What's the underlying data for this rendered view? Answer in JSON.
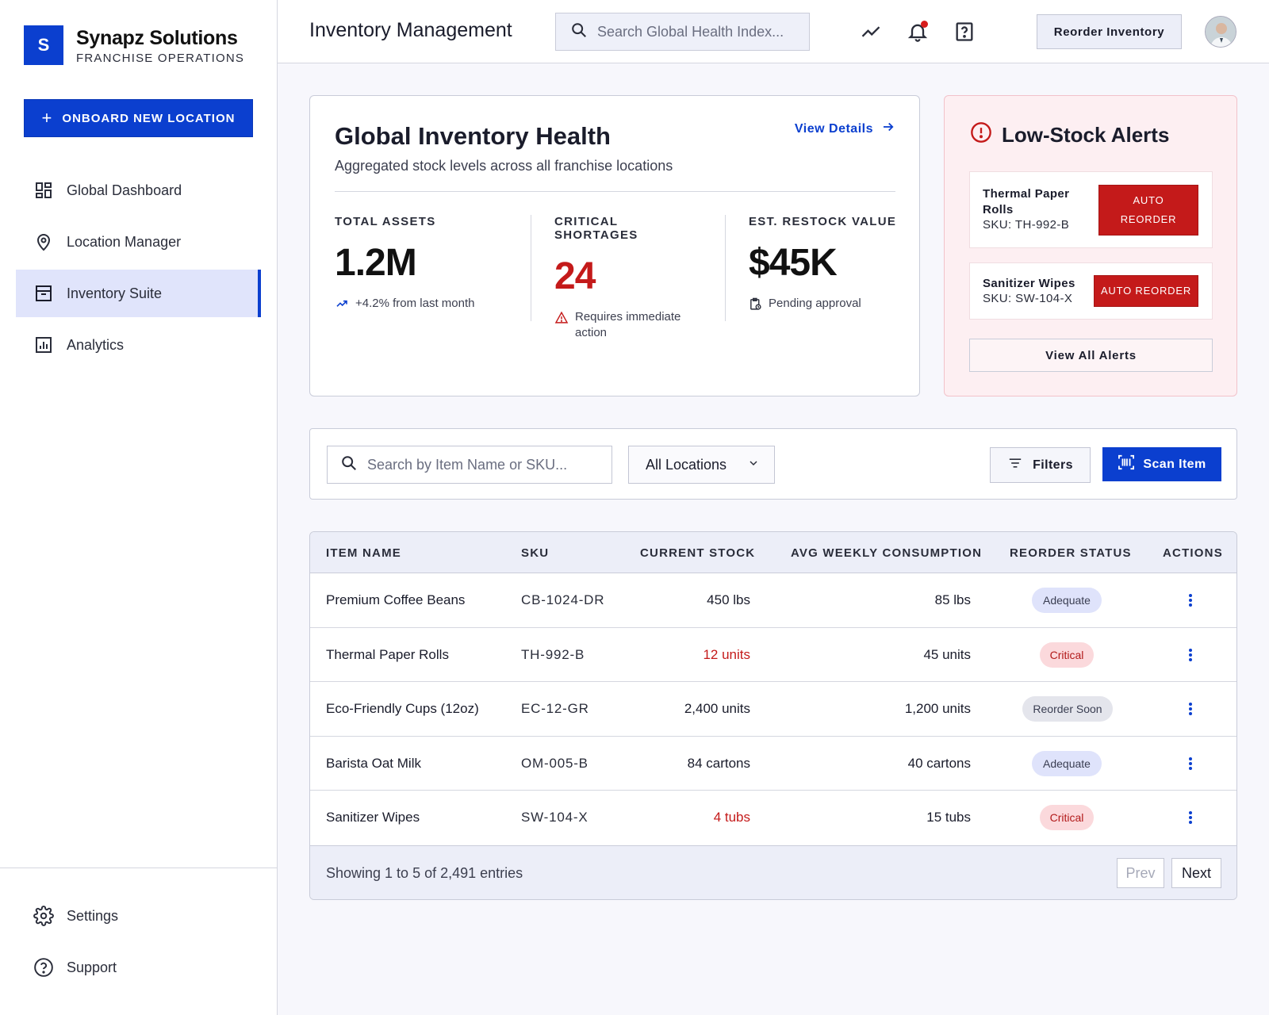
{
  "brand": {
    "logo_letter": "S",
    "name": "Synapz Solutions",
    "subtitle": "FRANCHISE OPERATIONS"
  },
  "sidebar": {
    "onboard_label": "ONBOARD NEW LOCATION",
    "items": [
      {
        "label": "Global Dashboard",
        "icon": "dashboard-icon",
        "active": false
      },
      {
        "label": "Location Manager",
        "icon": "location-pin-icon",
        "active": false
      },
      {
        "label": "Inventory Suite",
        "icon": "archive-box-icon",
        "active": true
      },
      {
        "label": "Analytics",
        "icon": "bar-chart-icon",
        "active": false
      }
    ],
    "bottom_items": [
      {
        "label": "Settings",
        "icon": "gear-icon"
      },
      {
        "label": "Support",
        "icon": "help-circle-icon"
      }
    ]
  },
  "header": {
    "title": "Inventory Management",
    "search_placeholder": "Search Global Health Index...",
    "reorder_label": "Reorder Inventory",
    "icons": [
      "trending-icon",
      "bell-icon",
      "help-square-icon"
    ]
  },
  "health": {
    "title": "Global Inventory Health",
    "subtitle": "Aggregated stock levels across all franchise locations",
    "view_details": "View Details",
    "metrics": [
      {
        "label": "TOTAL ASSETS",
        "value": "1.2M",
        "note": "+4.2% from last month"
      },
      {
        "label": "CRITICAL SHORTAGES",
        "value": "24",
        "note": "Requires immediate action"
      },
      {
        "label": "EST. RESTOCK VALUE",
        "value": "$45K",
        "note": "Pending approval"
      }
    ]
  },
  "alerts": {
    "title": "Low-Stock Alerts",
    "items": [
      {
        "name": "Thermal Paper Rolls",
        "sku": "SKU: TH-992-B",
        "button": "AUTO REORDER"
      },
      {
        "name": "Sanitizer Wipes",
        "sku": "SKU: SW-104-X",
        "button": "AUTO REORDER"
      }
    ],
    "view_all": "View All Alerts"
  },
  "filters": {
    "search_placeholder": "Search by Item Name or SKU...",
    "location_selected": "All Locations",
    "filters_label": "Filters",
    "scan_label": "Scan Item"
  },
  "table": {
    "headers": [
      "ITEM NAME",
      "SKU",
      "CURRENT STOCK",
      "AVG WEEKLY CONSUMPTION",
      "REORDER STATUS",
      "ACTIONS"
    ],
    "rows": [
      {
        "name": "Premium Coffee Beans",
        "sku": "CB-1024-DR",
        "stock": "450 lbs",
        "consumption": "85 lbs",
        "status": "Adequate"
      },
      {
        "name": "Thermal Paper Rolls",
        "sku": "TH-992-B",
        "stock": "12 units",
        "consumption": "45 units",
        "status": "Critical"
      },
      {
        "name": "Eco-Friendly Cups (12oz)",
        "sku": "EC-12-GR",
        "stock": "2,400 units",
        "consumption": "1,200 units",
        "status": "Reorder Soon"
      },
      {
        "name": "Barista Oat Milk",
        "sku": "OM-005-B",
        "stock": "84 cartons",
        "consumption": "40 cartons",
        "status": "Adequate"
      },
      {
        "name": "Sanitizer Wipes",
        "sku": "SW-104-X",
        "stock": "4 tubs",
        "consumption": "15 tubs",
        "status": "Critical"
      }
    ],
    "footer": "Showing 1 to 5 of 2,491 entries",
    "prev": "Prev",
    "next": "Next"
  },
  "colors": {
    "primary": "#0b3fcf",
    "critical": "#c41a1a",
    "alert_bg": "#fdeff2"
  }
}
